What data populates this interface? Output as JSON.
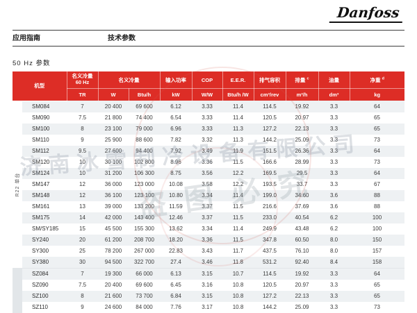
{
  "logo": {
    "text": "Danfoss"
  },
  "page_header": {
    "left_label": "应用指南",
    "center_label": "技术参数"
  },
  "section_title": "50 Hz 参数",
  "watermark": {
    "company": "济南冰雪制冷设备有限公司",
    "notice": "盗图必究"
  },
  "colors": {
    "header_red": "#dd2d26",
    "stripe": "#eef1f3"
  },
  "table": {
    "header": {
      "model": "机型",
      "nominal_capacity_60hz_line1": "名义冷量",
      "nominal_capacity_60hz_line2": "60 Hz",
      "nominal_capacity": "名义冷量",
      "input_power": "输入功率",
      "cop": "COP",
      "eer": "E.E.R.",
      "displacement_volume": "排气容积",
      "displacement": "排量",
      "displacement_note": "c",
      "oil_charge": "油量",
      "net_weight": "净重",
      "net_weight_note": "d",
      "units": {
        "tr": "TR",
        "w": "W",
        "btu_h": "Btu/h",
        "kw": "kW",
        "w_w": "W/W",
        "btu_h_w": "Btu/h /W",
        "cm3_rev": "cm³/rev",
        "m3_h": "m³/h",
        "dm3": "dm³",
        "kg": "kg"
      }
    },
    "sections": [
      {
        "label": "R22 单台",
        "rows": [
          {
            "model": "SM084",
            "values": [
              "7",
              "20 400",
              "69 600",
              "6.12",
              "3.33",
              "11.4",
              "114.5",
              "19.92",
              "3.3",
              "64"
            ]
          },
          {
            "model": "SM090",
            "values": [
              "7.5",
              "21 800",
              "74 400",
              "6.54",
              "3.33",
              "11.4",
              "120.5",
              "20.97",
              "3.3",
              "65"
            ]
          },
          {
            "model": "SM100",
            "values": [
              "8",
              "23 100",
              "79 000",
              "6.96",
              "3.33",
              "11.3",
              "127.2",
              "22.13",
              "3.3",
              "65"
            ]
          },
          {
            "model": "SM110",
            "values": [
              "9",
              "25 900",
              "88 600",
              "7.82",
              "3.32",
              "11.3",
              "144.2",
              "25.09",
              "3.3",
              "73"
            ]
          },
          {
            "model": "SM112",
            "values": [
              "9.5",
              "27 600",
              "94 400",
              "7.92",
              "3.49",
              "11.9",
              "151.5",
              "26.36",
              "3.3",
              "64"
            ]
          },
          {
            "model": "SM120",
            "values": [
              "10",
              "30 100",
              "102 800",
              "8.96",
              "3.36",
              "11.5",
              "166.6",
              "28.99",
              "3.3",
              "73"
            ]
          },
          {
            "model": "SM124",
            "values": [
              "10",
              "31 200",
              "106 300",
              "8.75",
              "3.56",
              "12.2",
              "169.5",
              "29.5",
              "3.3",
              "64"
            ]
          },
          {
            "model": "SM147",
            "values": [
              "12",
              "36 000",
              "123 000",
              "10.08",
              "3.58",
              "12.2",
              "193.5",
              "33.7",
              "3.3",
              "67"
            ]
          },
          {
            "model": "SM148",
            "values": [
              "12",
              "36 100",
              "123 100",
              "10.80",
              "3.34",
              "11.4",
              "199.0",
              "34.60",
              "3.6",
              "88"
            ]
          },
          {
            "model": "SM161",
            "values": [
              "13",
              "39 000",
              "133 200",
              "11.59",
              "3.37",
              "11.5",
              "216.6",
              "37.69",
              "3.6",
              "88"
            ]
          },
          {
            "model": "SM175",
            "values": [
              "14",
              "42 000",
              "143 400",
              "12.46",
              "3.37",
              "11.5",
              "233.0",
              "40.54",
              "6.2",
              "100"
            ]
          },
          {
            "model": "SM/SY185",
            "values": [
              "15",
              "45 500",
              "155 300",
              "13.62",
              "3.34",
              "11.4",
              "249.9",
              "43.48",
              "6.2",
              "100"
            ]
          },
          {
            "model": "SY240",
            "values": [
              "20",
              "61 200",
              "208 700",
              "18.20",
              "3.36",
              "11.5",
              "347.8",
              "60.50",
              "8.0",
              "150"
            ]
          },
          {
            "model": "SY300",
            "values": [
              "25",
              "78 200",
              "267 000",
              "22.83",
              "3.43",
              "11.7",
              "437.5",
              "76.10",
              "8.0",
              "157"
            ]
          },
          {
            "model": "SY380",
            "values": [
              "30",
              "94 500",
              "322 700",
              "27.4",
              "3.46",
              "11.8",
              "531.2",
              "92.40",
              "8.4",
              "158"
            ]
          }
        ]
      },
      {
        "label": "",
        "rows": [
          {
            "model": "SZ084",
            "values": [
              "7",
              "19 300",
              "66 000",
              "6.13",
              "3.15",
              "10.7",
              "114.5",
              "19.92",
              "3.3",
              "64"
            ]
          },
          {
            "model": "SZ090",
            "values": [
              "7.5",
              "20 400",
              "69 600",
              "6.45",
              "3.16",
              "10.8",
              "120.5",
              "20.97",
              "3.3",
              "65"
            ]
          },
          {
            "model": "SZ100",
            "values": [
              "8",
              "21 600",
              "73 700",
              "6.84",
              "3.15",
              "10.8",
              "127.2",
              "22.13",
              "3.3",
              "65"
            ]
          },
          {
            "model": "SZ110",
            "values": [
              "9",
              "24 600",
              "84 000",
              "7.76",
              "3.17",
              "10.8",
              "144.2",
              "25.09",
              "3.3",
              "73"
            ]
          }
        ]
      }
    ]
  }
}
